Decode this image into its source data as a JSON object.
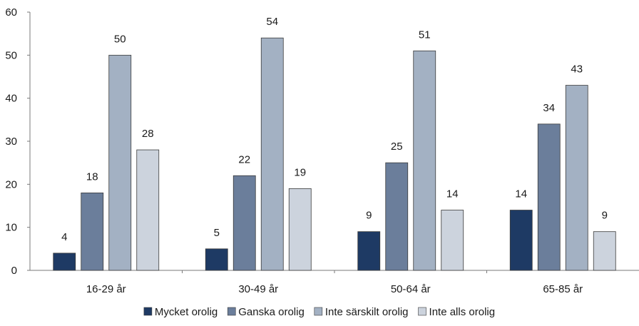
{
  "chart_data": {
    "type": "bar",
    "title": "",
    "xlabel": "",
    "ylabel": "",
    "categories": [
      "16-29 år",
      "30-49 år",
      "50-64 år",
      "65-85 år"
    ],
    "ylim": [
      0,
      60
    ],
    "yticks": [
      0,
      10,
      20,
      30,
      40,
      50,
      60
    ],
    "grid": false,
    "legend_position": "bottom",
    "series": [
      {
        "name": "Mycket orolig",
        "color": "#1e3a64",
        "values": [
          4,
          5,
          9,
          14
        ]
      },
      {
        "name": "Ganska orolig",
        "color": "#6b7e9b",
        "values": [
          18,
          22,
          25,
          34
        ]
      },
      {
        "name": "Inte särskilt orolig",
        "color": "#a3b1c3",
        "values": [
          50,
          54,
          51,
          43
        ]
      },
      {
        "name": "Inte alls orolig",
        "color": "#ccd3dd",
        "values": [
          28,
          19,
          14,
          9
        ]
      }
    ]
  }
}
